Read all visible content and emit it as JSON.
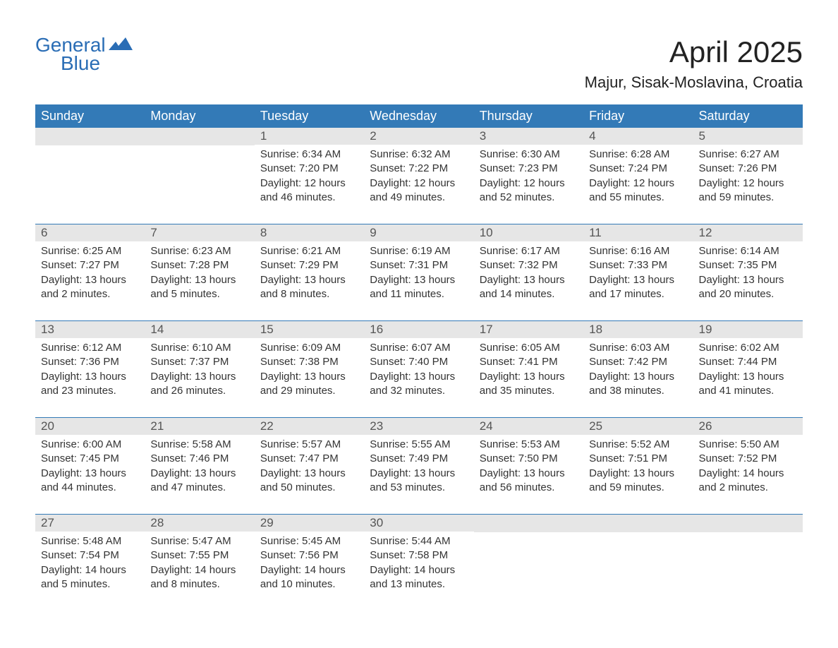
{
  "brand": {
    "word1": "General",
    "word2": "Blue"
  },
  "title": "April 2025",
  "location": "Majur, Sisak-Moslavina, Croatia",
  "colors": {
    "header_bg": "#337ab7",
    "header_text": "#ffffff",
    "daynum_bg": "#e6e6e6",
    "text": "#333333",
    "brand": "#2a6db5",
    "week_divider": "#337ab7",
    "background": "#ffffff"
  },
  "typography": {
    "title_fontsize": 42,
    "location_fontsize": 22,
    "dayheader_fontsize": 18,
    "daynum_fontsize": 17,
    "cell_fontsize": 15,
    "font_family": "Arial"
  },
  "day_headers": [
    "Sunday",
    "Monday",
    "Tuesday",
    "Wednesday",
    "Thursday",
    "Friday",
    "Saturday"
  ],
  "weeks": [
    [
      {
        "day": "",
        "sunrise": "",
        "sunset": "",
        "daylight": ""
      },
      {
        "day": "",
        "sunrise": "",
        "sunset": "",
        "daylight": ""
      },
      {
        "day": "1",
        "sunrise": "Sunrise: 6:34 AM",
        "sunset": "Sunset: 7:20 PM",
        "daylight": "Daylight: 12 hours and 46 minutes."
      },
      {
        "day": "2",
        "sunrise": "Sunrise: 6:32 AM",
        "sunset": "Sunset: 7:22 PM",
        "daylight": "Daylight: 12 hours and 49 minutes."
      },
      {
        "day": "3",
        "sunrise": "Sunrise: 6:30 AM",
        "sunset": "Sunset: 7:23 PM",
        "daylight": "Daylight: 12 hours and 52 minutes."
      },
      {
        "day": "4",
        "sunrise": "Sunrise: 6:28 AM",
        "sunset": "Sunset: 7:24 PM",
        "daylight": "Daylight: 12 hours and 55 minutes."
      },
      {
        "day": "5",
        "sunrise": "Sunrise: 6:27 AM",
        "sunset": "Sunset: 7:26 PM",
        "daylight": "Daylight: 12 hours and 59 minutes."
      }
    ],
    [
      {
        "day": "6",
        "sunrise": "Sunrise: 6:25 AM",
        "sunset": "Sunset: 7:27 PM",
        "daylight": "Daylight: 13 hours and 2 minutes."
      },
      {
        "day": "7",
        "sunrise": "Sunrise: 6:23 AM",
        "sunset": "Sunset: 7:28 PM",
        "daylight": "Daylight: 13 hours and 5 minutes."
      },
      {
        "day": "8",
        "sunrise": "Sunrise: 6:21 AM",
        "sunset": "Sunset: 7:29 PM",
        "daylight": "Daylight: 13 hours and 8 minutes."
      },
      {
        "day": "9",
        "sunrise": "Sunrise: 6:19 AM",
        "sunset": "Sunset: 7:31 PM",
        "daylight": "Daylight: 13 hours and 11 minutes."
      },
      {
        "day": "10",
        "sunrise": "Sunrise: 6:17 AM",
        "sunset": "Sunset: 7:32 PM",
        "daylight": "Daylight: 13 hours and 14 minutes."
      },
      {
        "day": "11",
        "sunrise": "Sunrise: 6:16 AM",
        "sunset": "Sunset: 7:33 PM",
        "daylight": "Daylight: 13 hours and 17 minutes."
      },
      {
        "day": "12",
        "sunrise": "Sunrise: 6:14 AM",
        "sunset": "Sunset: 7:35 PM",
        "daylight": "Daylight: 13 hours and 20 minutes."
      }
    ],
    [
      {
        "day": "13",
        "sunrise": "Sunrise: 6:12 AM",
        "sunset": "Sunset: 7:36 PM",
        "daylight": "Daylight: 13 hours and 23 minutes."
      },
      {
        "day": "14",
        "sunrise": "Sunrise: 6:10 AM",
        "sunset": "Sunset: 7:37 PM",
        "daylight": "Daylight: 13 hours and 26 minutes."
      },
      {
        "day": "15",
        "sunrise": "Sunrise: 6:09 AM",
        "sunset": "Sunset: 7:38 PM",
        "daylight": "Daylight: 13 hours and 29 minutes."
      },
      {
        "day": "16",
        "sunrise": "Sunrise: 6:07 AM",
        "sunset": "Sunset: 7:40 PM",
        "daylight": "Daylight: 13 hours and 32 minutes."
      },
      {
        "day": "17",
        "sunrise": "Sunrise: 6:05 AM",
        "sunset": "Sunset: 7:41 PM",
        "daylight": "Daylight: 13 hours and 35 minutes."
      },
      {
        "day": "18",
        "sunrise": "Sunrise: 6:03 AM",
        "sunset": "Sunset: 7:42 PM",
        "daylight": "Daylight: 13 hours and 38 minutes."
      },
      {
        "day": "19",
        "sunrise": "Sunrise: 6:02 AM",
        "sunset": "Sunset: 7:44 PM",
        "daylight": "Daylight: 13 hours and 41 minutes."
      }
    ],
    [
      {
        "day": "20",
        "sunrise": "Sunrise: 6:00 AM",
        "sunset": "Sunset: 7:45 PM",
        "daylight": "Daylight: 13 hours and 44 minutes."
      },
      {
        "day": "21",
        "sunrise": "Sunrise: 5:58 AM",
        "sunset": "Sunset: 7:46 PM",
        "daylight": "Daylight: 13 hours and 47 minutes."
      },
      {
        "day": "22",
        "sunrise": "Sunrise: 5:57 AM",
        "sunset": "Sunset: 7:47 PM",
        "daylight": "Daylight: 13 hours and 50 minutes."
      },
      {
        "day": "23",
        "sunrise": "Sunrise: 5:55 AM",
        "sunset": "Sunset: 7:49 PM",
        "daylight": "Daylight: 13 hours and 53 minutes."
      },
      {
        "day": "24",
        "sunrise": "Sunrise: 5:53 AM",
        "sunset": "Sunset: 7:50 PM",
        "daylight": "Daylight: 13 hours and 56 minutes."
      },
      {
        "day": "25",
        "sunrise": "Sunrise: 5:52 AM",
        "sunset": "Sunset: 7:51 PM",
        "daylight": "Daylight: 13 hours and 59 minutes."
      },
      {
        "day": "26",
        "sunrise": "Sunrise: 5:50 AM",
        "sunset": "Sunset: 7:52 PM",
        "daylight": "Daylight: 14 hours and 2 minutes."
      }
    ],
    [
      {
        "day": "27",
        "sunrise": "Sunrise: 5:48 AM",
        "sunset": "Sunset: 7:54 PM",
        "daylight": "Daylight: 14 hours and 5 minutes."
      },
      {
        "day": "28",
        "sunrise": "Sunrise: 5:47 AM",
        "sunset": "Sunset: 7:55 PM",
        "daylight": "Daylight: 14 hours and 8 minutes."
      },
      {
        "day": "29",
        "sunrise": "Sunrise: 5:45 AM",
        "sunset": "Sunset: 7:56 PM",
        "daylight": "Daylight: 14 hours and 10 minutes."
      },
      {
        "day": "30",
        "sunrise": "Sunrise: 5:44 AM",
        "sunset": "Sunset: 7:58 PM",
        "daylight": "Daylight: 14 hours and 13 minutes."
      },
      {
        "day": "",
        "sunrise": "",
        "sunset": "",
        "daylight": ""
      },
      {
        "day": "",
        "sunrise": "",
        "sunset": "",
        "daylight": ""
      },
      {
        "day": "",
        "sunrise": "",
        "sunset": "",
        "daylight": ""
      }
    ]
  ]
}
